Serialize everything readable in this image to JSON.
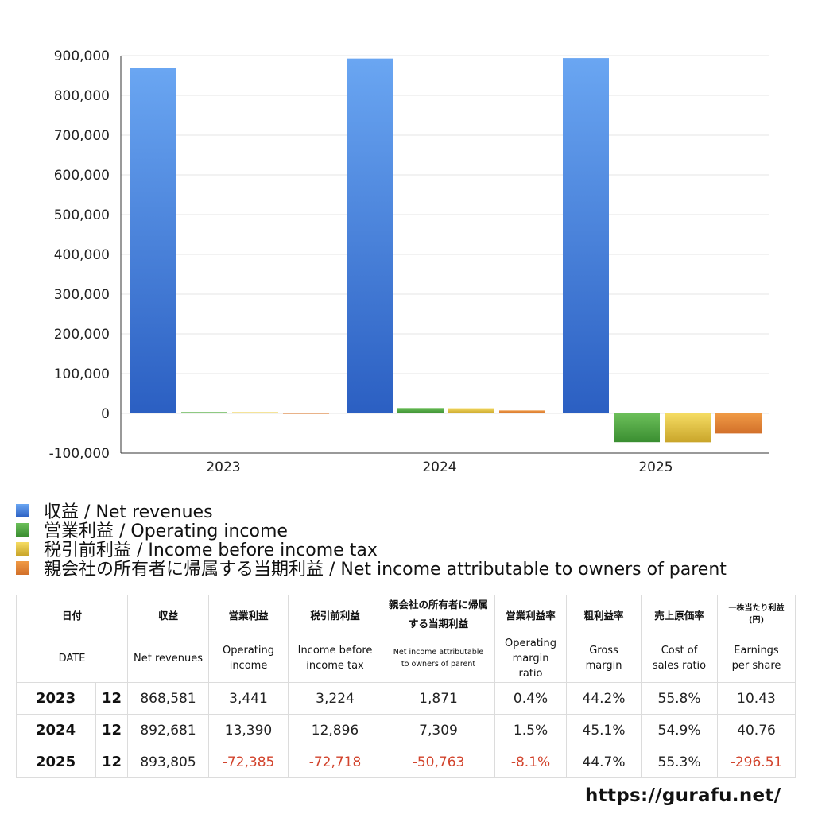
{
  "chart_data": {
    "type": "bar",
    "categories": [
      "2023",
      "2024",
      "2025"
    ],
    "ylim": [
      -100000,
      900000
    ],
    "yticks": [
      900000,
      800000,
      700000,
      600000,
      500000,
      400000,
      300000,
      200000,
      100000,
      0,
      -100000
    ],
    "ytick_labels": [
      "900,000",
      "800,000",
      "700,000",
      "600,000",
      "500,000",
      "400,000",
      "300,000",
      "200,000",
      "100,000",
      "0",
      "-100,000"
    ],
    "grid": true,
    "legend_position": "bottom",
    "series": [
      {
        "name": "収益 / Net revenues",
        "values": [
          868581,
          892681,
          893805
        ],
        "color_top": "#6aa6f2",
        "color_bottom": "#2b5fc2"
      },
      {
        "name": "営業利益 / Operating income",
        "values": [
          3441,
          13390,
          -72385
        ],
        "color_top": "#6cbf5a",
        "color_bottom": "#3a8e31"
      },
      {
        "name": "税引前利益 / Income before income tax",
        "values": [
          3224,
          12896,
          -72718
        ],
        "color_top": "#f5dc63",
        "color_bottom": "#c9a52a"
      },
      {
        "name": "親会社の所有者に帰属する当期利益 / Net income attributable to owners of parent",
        "values": [
          1871,
          7309,
          -50763
        ],
        "color_top": "#f09a45",
        "color_bottom": "#d2702a"
      }
    ]
  },
  "table": {
    "header_jp": [
      "日付",
      "収益",
      "営業利益",
      "税引前利益",
      "親会社の所有者に帰属する当期利益",
      "営業利益率",
      "粗利益率",
      "売上原価率",
      "一株当たり利益(円)"
    ],
    "header_en": [
      "DATE",
      "Net revenues",
      "Operating income",
      "Income before income tax",
      "Net income attributable to owners of parent",
      "Operating margin ratio",
      "Gross margin",
      "Cost of sales ratio",
      "Earnings per share"
    ],
    "rows": [
      {
        "year": "2023",
        "month": "12",
        "values": [
          "868,581",
          "3,441",
          "3,224",
          "1,871",
          "0.4%",
          "44.2%",
          "55.8%",
          "10.43"
        ],
        "negative": [
          false,
          false,
          false,
          false,
          false,
          false,
          false,
          false
        ]
      },
      {
        "year": "2024",
        "month": "12",
        "values": [
          "892,681",
          "13,390",
          "12,896",
          "7,309",
          "1.5%",
          "45.1%",
          "54.9%",
          "40.76"
        ],
        "negative": [
          false,
          false,
          false,
          false,
          false,
          false,
          false,
          false
        ]
      },
      {
        "year": "2025",
        "month": "12",
        "values": [
          "893,805",
          "-72,385",
          "-72,718",
          "-50,763",
          "-8.1%",
          "44.7%",
          "55.3%",
          "-296.51"
        ],
        "negative": [
          false,
          true,
          true,
          true,
          true,
          false,
          false,
          true
        ]
      }
    ]
  },
  "source": "https://gurafu.net/"
}
